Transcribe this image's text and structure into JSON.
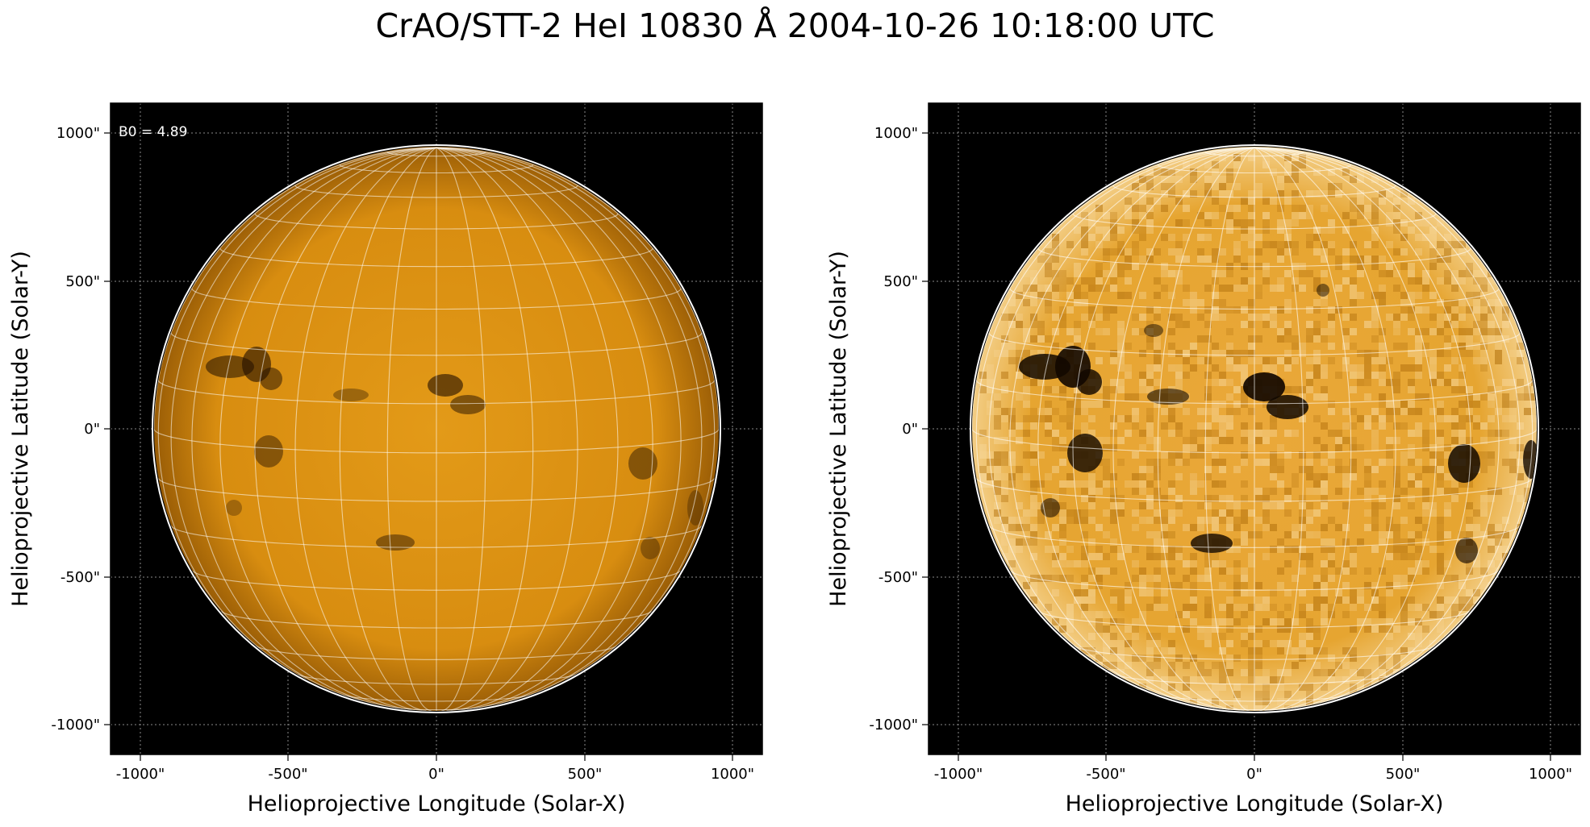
{
  "figure": {
    "title": "CrAO/STT-2 HeI 10830 Å 2004-10-26 10:18:00 UTC"
  },
  "panels": [
    {
      "name": "left",
      "annotation": "B0 = 4.89",
      "xlabel": "Helioprojective Longitude (Solar-X)",
      "ylabel": "Helioprojective Latitude (Solar-Y)",
      "xticks": [
        "-1000\"",
        "-500\"",
        "0\"",
        "500\"",
        "1000\""
      ],
      "yticks": [
        "1000\"",
        "500\"",
        "0\"",
        "-500\"",
        "-1000\""
      ],
      "axis_range_arcsec": [
        -1100,
        1100
      ],
      "solar_radius_arcsec": 960,
      "b0_deg": 4.89,
      "contrast": "normal"
    },
    {
      "name": "right",
      "annotation": "",
      "xlabel": "Helioprojective Longitude (Solar-X)",
      "ylabel": "Helioprojective Latitude (Solar-Y)",
      "xticks": [
        "-1000\"",
        "-500\"",
        "0\"",
        "500\"",
        "1000\""
      ],
      "yticks": [
        "1000\"",
        "500\"",
        "0\"",
        "-500\"",
        "-1000\""
      ],
      "axis_range_arcsec": [
        -1100,
        1100
      ],
      "solar_radius_arcsec": 960,
      "b0_deg": 4.89,
      "contrast": "enhanced"
    }
  ],
  "colors": {
    "background": "#000000",
    "disk_normal": "#d98e0c",
    "disk_enhanced": "#e3a12b",
    "grid": "#ffffff",
    "features": "#1a0c00"
  }
}
